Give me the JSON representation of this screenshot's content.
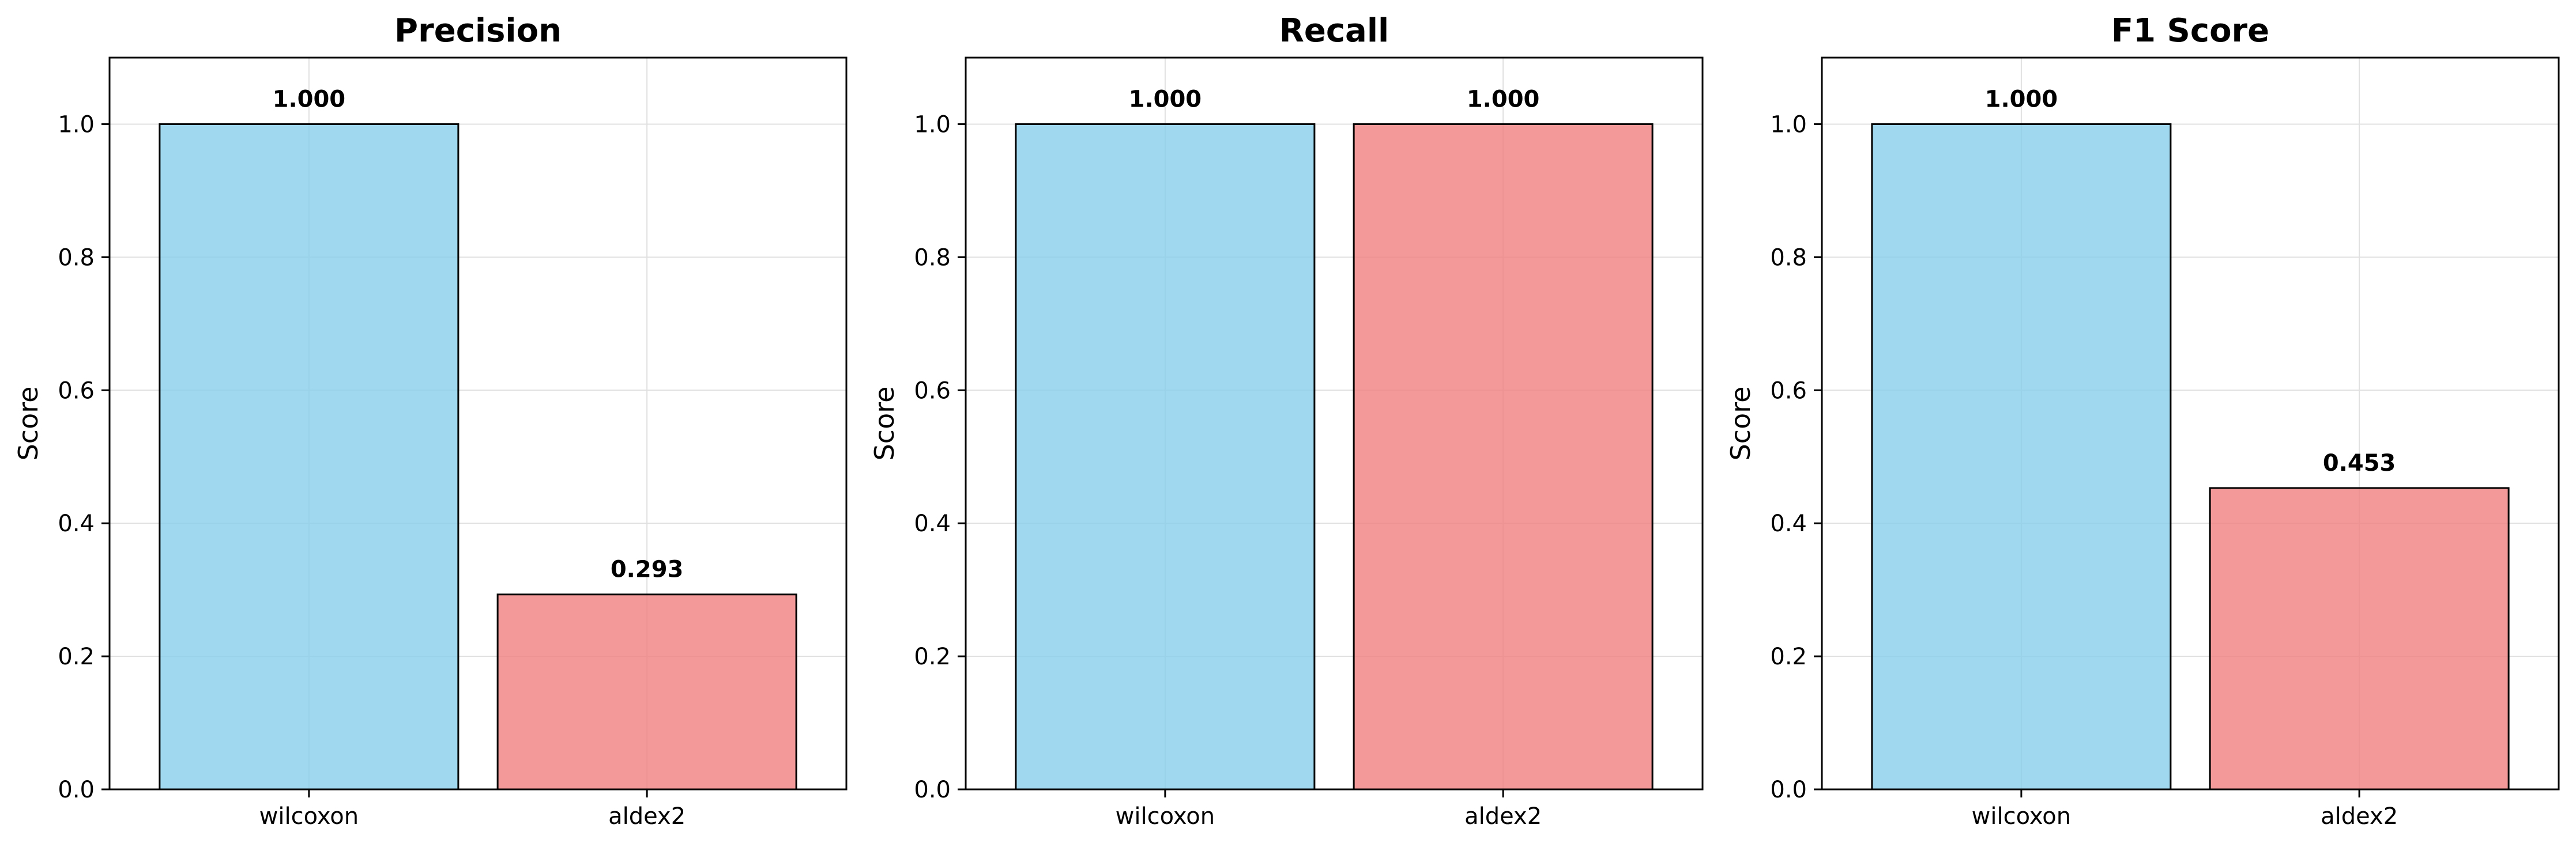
{
  "chart_data": [
    {
      "type": "bar",
      "title": "Precision",
      "xlabel": "",
      "ylabel": "Score",
      "ylim": [
        0,
        1.1
      ],
      "yticks": [
        0.0,
        0.2,
        0.4,
        0.6,
        0.8,
        1.0
      ],
      "ytick_labels": [
        "0.0",
        "0.2",
        "0.4",
        "0.6",
        "0.8",
        "1.0"
      ],
      "categories": [
        "wilcoxon",
        "aldex2"
      ],
      "values": [
        1.0,
        0.293
      ],
      "data_labels": [
        "1.000",
        "0.293"
      ],
      "colors": [
        "#87CEEB",
        "#F08080"
      ],
      "grid": true
    },
    {
      "type": "bar",
      "title": "Recall",
      "xlabel": "",
      "ylabel": "Score",
      "ylim": [
        0,
        1.1
      ],
      "yticks": [
        0.0,
        0.2,
        0.4,
        0.6,
        0.8,
        1.0
      ],
      "ytick_labels": [
        "0.0",
        "0.2",
        "0.4",
        "0.6",
        "0.8",
        "1.0"
      ],
      "categories": [
        "wilcoxon",
        "aldex2"
      ],
      "values": [
        1.0,
        1.0
      ],
      "data_labels": [
        "1.000",
        "1.000"
      ],
      "colors": [
        "#87CEEB",
        "#F08080"
      ],
      "grid": true
    },
    {
      "type": "bar",
      "title": "F1 Score",
      "xlabel": "",
      "ylabel": "Score",
      "ylim": [
        0,
        1.1
      ],
      "yticks": [
        0.0,
        0.2,
        0.4,
        0.6,
        0.8,
        1.0
      ],
      "ytick_labels": [
        "0.0",
        "0.2",
        "0.4",
        "0.6",
        "0.8",
        "1.0"
      ],
      "categories": [
        "wilcoxon",
        "aldex2"
      ],
      "values": [
        1.0,
        0.453
      ],
      "data_labels": [
        "1.000",
        "0.453"
      ],
      "colors": [
        "#87CEEB",
        "#F08080"
      ],
      "grid": true
    }
  ]
}
